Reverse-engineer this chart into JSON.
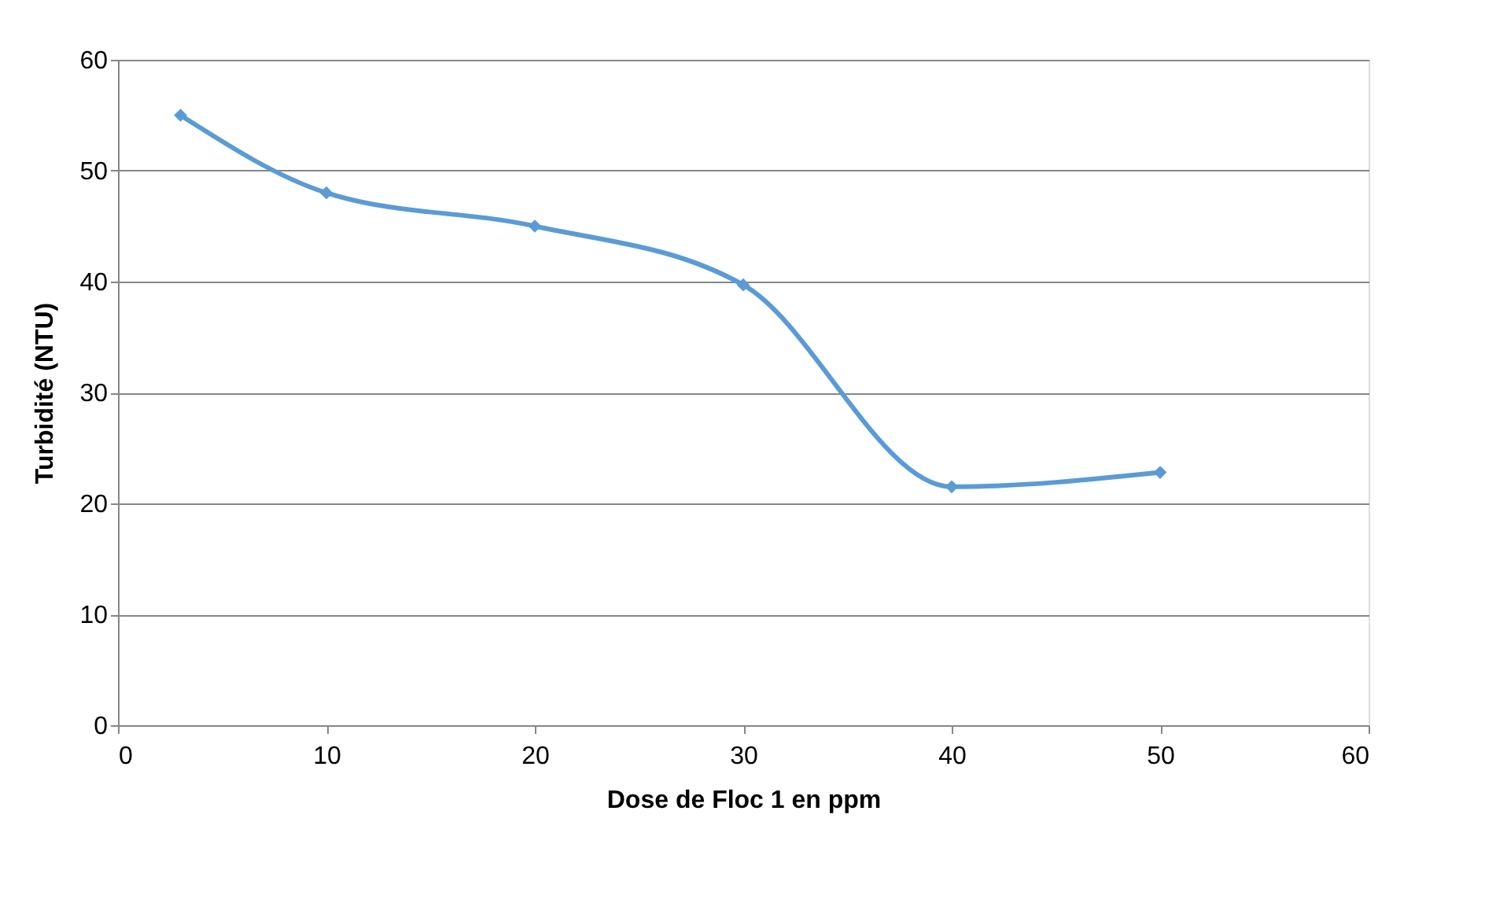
{
  "chart_data": {
    "type": "line",
    "xlabel": "Dose de Floc 1 en ppm",
    "ylabel": "Turbidité (NTU)",
    "x": [
      3,
      10,
      20,
      30,
      40,
      50
    ],
    "series": [
      {
        "color": "#5b9bd5",
        "values": [
          55,
          48,
          45,
          39.7,
          21.5,
          22.8
        ]
      }
    ],
    "xlim": [
      0,
      60
    ],
    "xticks": [
      0,
      10,
      20,
      30,
      40,
      50,
      60
    ],
    "ylim": [
      0,
      60
    ],
    "yticks": [
      0,
      10,
      20,
      30,
      40,
      50,
      60
    ],
    "grid": "y",
    "marker": "diamond",
    "line_style": "solid",
    "legend": false
  }
}
